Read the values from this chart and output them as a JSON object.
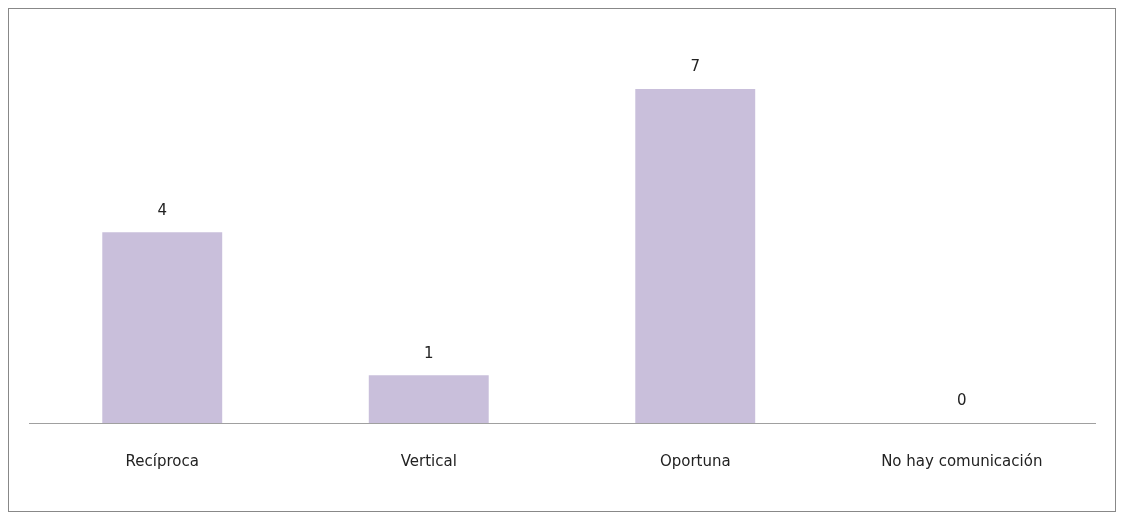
{
  "chart_data": {
    "type": "bar",
    "categories": [
      "Recíproca",
      "Vertical",
      "Oportuna",
      "No hay comunicación"
    ],
    "values": [
      4,
      1,
      7,
      0
    ],
    "color": "#c9bfdb",
    "data_labels": true,
    "grid": false,
    "legend": false
  }
}
